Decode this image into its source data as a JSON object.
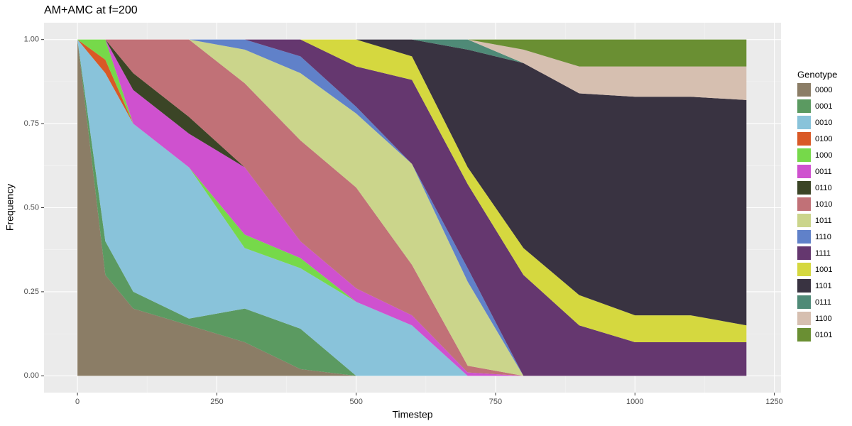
{
  "chart_data": {
    "type": "area",
    "title": "AM+AMC at f=200",
    "x_label": "Timestep",
    "y_label": "Frequency",
    "legend_title": "Genotype",
    "legend": "right",
    "grid": true,
    "stacked": true,
    "x": [
      0,
      50,
      100,
      200,
      300,
      400,
      500,
      600,
      700,
      800,
      900,
      1000,
      1100,
      1200
    ],
    "xlim": [
      -60,
      1262
    ],
    "xticks": [
      0,
      250,
      500,
      750,
      1000,
      1250
    ],
    "ylim": [
      -0.05,
      1.05
    ],
    "yticks": [
      {
        "value": 0,
        "label": "0.00"
      },
      {
        "value": 0.25,
        "label": "0.25"
      },
      {
        "value": 0.5,
        "label": "0.50"
      },
      {
        "value": 0.75,
        "label": "0.75"
      },
      {
        "value": 1,
        "label": "1.00"
      }
    ],
    "series": [
      {
        "name": "0000",
        "color": "#8b7d66",
        "values": [
          1,
          0.3,
          0.2,
          0.15,
          0.1,
          0.02,
          0,
          0,
          0,
          0,
          0,
          0,
          0,
          0
        ]
      },
      {
        "name": "0001",
        "color": "#5b9a61",
        "values": [
          0,
          0.1,
          0.05,
          0.02,
          0.1,
          0.12,
          0,
          0,
          0,
          0,
          0,
          0,
          0,
          0
        ]
      },
      {
        "name": "0010",
        "color": "#89c3da",
        "values": [
          0,
          0.5,
          0.5,
          0.45,
          0.18,
          0.18,
          0.22,
          0.15,
          0,
          0,
          0,
          0,
          0,
          0
        ]
      },
      {
        "name": "0100",
        "color": "#d95926",
        "values": [
          0,
          0.04,
          0,
          0,
          0,
          0,
          0,
          0,
          0,
          0,
          0,
          0,
          0,
          0
        ]
      },
      {
        "name": "1000",
        "color": "#76d94a",
        "values": [
          0,
          0.06,
          0,
          0,
          0.04,
          0.03,
          0,
          0,
          0,
          0,
          0,
          0,
          0,
          0
        ]
      },
      {
        "name": "0011",
        "color": "#cf51cf",
        "values": [
          0,
          0,
          0.1,
          0.1,
          0.2,
          0.05,
          0.04,
          0.03,
          0.01,
          0,
          0,
          0,
          0,
          0
        ]
      },
      {
        "name": "0110",
        "color": "#3b4526",
        "values": [
          0,
          0,
          0.05,
          0.05,
          0,
          0,
          0,
          0,
          0,
          0,
          0,
          0,
          0,
          0
        ]
      },
      {
        "name": "1010",
        "color": "#c17177",
        "values": [
          0,
          0,
          0.1,
          0.23,
          0.25,
          0.3,
          0.3,
          0.15,
          0.02,
          0,
          0,
          0,
          0,
          0
        ]
      },
      {
        "name": "1011",
        "color": "#cbd58b",
        "values": [
          0,
          0,
          0,
          0,
          0.1,
          0.2,
          0.22,
          0.3,
          0.25,
          0,
          0,
          0,
          0,
          0
        ]
      },
      {
        "name": "1110",
        "color": "#6081c9",
        "values": [
          0,
          0,
          0,
          0,
          0.03,
          0.05,
          0.02,
          0,
          0.04,
          0,
          0,
          0,
          0,
          0
        ]
      },
      {
        "name": "1111",
        "color": "#65376f",
        "values": [
          0,
          0,
          0,
          0,
          0,
          0.05,
          0.12,
          0.25,
          0.25,
          0.3,
          0.15,
          0.1,
          0.1,
          0.1
        ]
      },
      {
        "name": "1001",
        "color": "#d5d83f",
        "values": [
          0,
          0,
          0,
          0,
          0,
          0,
          0.08,
          0.07,
          0.05,
          0.08,
          0.09,
          0.08,
          0.08,
          0.05
        ]
      },
      {
        "name": "1101",
        "color": "#393341",
        "values": [
          0,
          0,
          0,
          0,
          0,
          0,
          0,
          0.05,
          0.35,
          0.55,
          0.6,
          0.65,
          0.65,
          0.67
        ]
      },
      {
        "name": "0111",
        "color": "#4f8a77",
        "values": [
          0,
          0,
          0,
          0,
          0,
          0,
          0,
          0,
          0.03,
          0,
          0,
          0,
          0,
          0
        ]
      },
      {
        "name": "1100",
        "color": "#d6bfb0",
        "values": [
          0,
          0,
          0,
          0,
          0,
          0,
          0,
          0,
          0,
          0.04,
          0.08,
          0.09,
          0.09,
          0.1
        ]
      },
      {
        "name": "0101",
        "color": "#6a8f33",
        "values": [
          0,
          0,
          0,
          0,
          0,
          0,
          0,
          0,
          0,
          0.03,
          0.08,
          0.08,
          0.08,
          0.08
        ]
      }
    ]
  }
}
